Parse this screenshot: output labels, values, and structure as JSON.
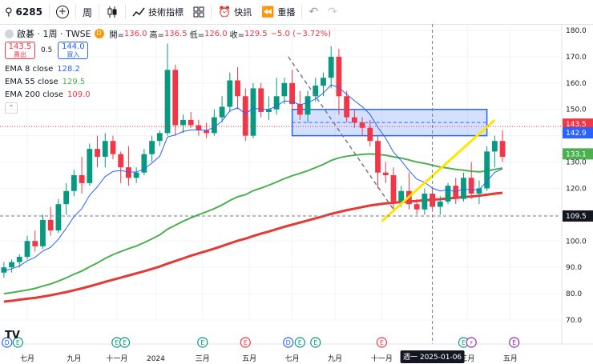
{
  "toolbar": {
    "symbol": "6285",
    "interval": "周",
    "indicators_label": "技術指標",
    "alert_label": "快訊",
    "replay_label": "重播"
  },
  "legend": {
    "name": "啟碁 · 1周 · TWSE",
    "d_badge": "D",
    "open_label": "開=",
    "open": "136.0",
    "high_label": "高=",
    "high": "136.5",
    "low_label": "低=",
    "low": "126.0",
    "close_label": "收=",
    "close": "129.5",
    "change": "−5.0 (−3.72%)",
    "sell_price": "143.5",
    "sell_label": "賣出",
    "spread": "0.5",
    "buy_price": "144.0",
    "buy_label": "買入",
    "ema8_label": "EMA 8 close",
    "ema8_value": "128.2",
    "ema55_label": "EMA 55 close",
    "ema55_value": "129.5",
    "ema200_label": "EMA 200 close",
    "ema200_value": "109.0"
  },
  "crosshair_label": "週一  2025-01-06",
  "price_tags": [
    {
      "value": "143.5",
      "price": 143.5,
      "color": "#f23645"
    },
    {
      "value": "142.9",
      "price": 142.9,
      "color": "#2962ff"
    },
    {
      "value": "133.1",
      "price": 133.1,
      "color": "#4caf50"
    },
    {
      "value": "109.5",
      "price": 109.5,
      "color": "#131722"
    }
  ],
  "event_markers": [
    {
      "label": "D",
      "color": "#2962ff",
      "x": 0.4
    },
    {
      "label": "E",
      "color": "#089981",
      "x": 1.8
    },
    {
      "label": "E",
      "color": "#089981",
      "x": 14.5
    },
    {
      "label": "E",
      "color": "#089981",
      "x": 15.5
    },
    {
      "label": "E",
      "color": "#089981",
      "x": 25.5
    },
    {
      "label": "E",
      "color": "#f23645",
      "x": 31
    },
    {
      "label": "D",
      "color": "#2962ff",
      "x": 36.5
    },
    {
      "label": "E",
      "color": "#089981",
      "x": 38
    },
    {
      "label": "E",
      "color": "#089981",
      "x": 40
    },
    {
      "label": "E",
      "color": "#f23645",
      "x": 48.5
    },
    {
      "label": "E",
      "color": "#089981",
      "x": 59
    },
    {
      "label": "⚡",
      "color": "#9c27b0",
      "x": 60
    },
    {
      "label": "E",
      "color": "#9c27b0",
      "x": 65.5
    }
  ],
  "chart_data": {
    "type": "candlestick",
    "interval": "1W",
    "yaxis": {
      "min": 70,
      "max": 180,
      "ticks": [
        70,
        80,
        90,
        100,
        110,
        120,
        130,
        140,
        150,
        160,
        170,
        180
      ]
    },
    "x_ticks": [
      {
        "label": "七月",
        "x": 3
      },
      {
        "label": "九月",
        "x": 9
      },
      {
        "label": "十一月",
        "x": 14.5
      },
      {
        "label": "2024",
        "x": 19.5
      },
      {
        "label": "三月",
        "x": 25.5
      },
      {
        "label": "五月",
        "x": 31.5
      },
      {
        "label": "七月",
        "x": 37
      },
      {
        "label": "九月",
        "x": 42.5
      },
      {
        "label": "十一月",
        "x": 48.5
      },
      {
        "label": "三月",
        "x": 59.5
      },
      {
        "label": "五月",
        "x": 65
      }
    ],
    "candles": [
      [
        88,
        92,
        86,
        90
      ],
      [
        90,
        93,
        88,
        92
      ],
      [
        92,
        95,
        90,
        94
      ],
      [
        94,
        102,
        93,
        100
      ],
      [
        100,
        104,
        96,
        98
      ],
      [
        98,
        110,
        97,
        108
      ],
      [
        108,
        113,
        102,
        104
      ],
      [
        104,
        116,
        103,
        114
      ],
      [
        114,
        122,
        110,
        119
      ],
      [
        119,
        127,
        117,
        125
      ],
      [
        125,
        132,
        118,
        122
      ],
      [
        122,
        137,
        121,
        135
      ],
      [
        135,
        140,
        128,
        132
      ],
      [
        132,
        141,
        128,
        138
      ],
      [
        138,
        140,
        131,
        133
      ],
      [
        133,
        134,
        122,
        128
      ],
      [
        128,
        136,
        121,
        124
      ],
      [
        124,
        128,
        122,
        126
      ],
      [
        126,
        135,
        125,
        133
      ],
      [
        133,
        140,
        130,
        138
      ],
      [
        138,
        142,
        136,
        141
      ],
      [
        141,
        175,
        140,
        165
      ],
      [
        165,
        167,
        140,
        144
      ],
      [
        144,
        148,
        141,
        146
      ],
      [
        146,
        149,
        143,
        144
      ],
      [
        144,
        146,
        140,
        142
      ],
      [
        142,
        145,
        139,
        141
      ],
      [
        141,
        150,
        140,
        147
      ],
      [
        147,
        155,
        145,
        151
      ],
      [
        151,
        164,
        149,
        161
      ],
      [
        161,
        166,
        150,
        155
      ],
      [
        155,
        158,
        138,
        140
      ],
      [
        140,
        160,
        139,
        158
      ],
      [
        158,
        160,
        147,
        149
      ],
      [
        149,
        155,
        146,
        150
      ],
      [
        150,
        162,
        148,
        155
      ],
      [
        155,
        162,
        152,
        160
      ],
      [
        160,
        165,
        150,
        152
      ],
      [
        152,
        157,
        146,
        148
      ],
      [
        148,
        157,
        145,
        155
      ],
      [
        155,
        162,
        153,
        159
      ],
      [
        159,
        164,
        155,
        162
      ],
      [
        162,
        174,
        158,
        170
      ],
      [
        170,
        173,
        148,
        155
      ],
      [
        155,
        157,
        145,
        147
      ],
      [
        147,
        150,
        143,
        145
      ],
      [
        145,
        147,
        140,
        143
      ],
      [
        143,
        146,
        136,
        138
      ],
      [
        138,
        140,
        120,
        126
      ],
      [
        126,
        130,
        122,
        125
      ],
      [
        125,
        128,
        112,
        115
      ],
      [
        115,
        121,
        113,
        119
      ],
      [
        119,
        126,
        112,
        114
      ],
      [
        114,
        116,
        110,
        112
      ],
      [
        112,
        120,
        110,
        118
      ],
      [
        118,
        120,
        112,
        113
      ],
      [
        113,
        117,
        110,
        115
      ],
      [
        115,
        122,
        114,
        121
      ],
      [
        121,
        124,
        114,
        116
      ],
      [
        116,
        126,
        115,
        124
      ],
      [
        124,
        130,
        116,
        118
      ],
      [
        118,
        123,
        114,
        120
      ],
      [
        120,
        136,
        119,
        134
      ],
      [
        134,
        140,
        128,
        138
      ],
      [
        138,
        142,
        130,
        132
      ]
    ],
    "ema8": [
      88.5,
      89.5,
      90.5,
      92.5,
      93.8,
      96.2,
      97.6,
      100.7,
      104.8,
      109.3,
      112.3,
      117.4,
      120.6,
      124.5,
      126.4,
      126.8,
      126.2,
      126.2,
      127.4,
      129.6,
      132.2,
      139.5,
      140.3,
      141.6,
      142.2,
      142.2,
      142.0,
      143.2,
      145.6,
      149.4,
      150.6,
      148.3,
      150.4,
      150.1,
      150.0,
      151.2,
      153.2,
      153.0,
      151.8,
      152.5,
      154.0,
      156.2,
      159.3,
      158.3,
      155.7,
      153.3,
      151.0,
      148.1,
      143.2,
      139.1,
      133.8,
      130.5,
      126.8,
      123.5,
      122.3,
      120.1,
      119.0,
      119.5,
      118.7,
      119.8,
      119.4,
      119.5,
      122.7,
      126.1,
      127.4
    ],
    "ema55": [
      80,
      80.4,
      80.9,
      81.4,
      82.0,
      82.9,
      83.7,
      84.8,
      86.0,
      87.4,
      88.6,
      90.2,
      91.7,
      93.4,
      94.8,
      96.0,
      97.1,
      98.1,
      99.4,
      100.8,
      102.3,
      104.5,
      106.0,
      107.5,
      108.8,
      110.0,
      111.1,
      112.3,
      113.7,
      115.4,
      116.8,
      117.6,
      119.1,
      120.1,
      121.2,
      122.4,
      123.7,
      124.8,
      125.7,
      126.7,
      127.9,
      129.1,
      130.6,
      131.6,
      132.2,
      132.6,
      132.9,
      133.1,
      132.9,
      132.6,
      132.0,
      131.5,
      130.8,
      130.0,
      129.5,
      128.8,
      128.1,
      127.7,
      127.2,
      126.9,
      126.5,
      126.3,
      126.6,
      127.2,
      127.7
    ],
    "ema200": [
      77,
      77.3,
      77.7,
      78.1,
      78.4,
      78.9,
      79.4,
      80.0,
      80.6,
      81.3,
      82.0,
      82.8,
      83.6,
      84.5,
      85.3,
      86.1,
      86.9,
      87.7,
      88.5,
      89.4,
      90.3,
      91.4,
      92.4,
      93.4,
      94.4,
      95.3,
      96.2,
      97.1,
      98.1,
      99.1,
      100.1,
      100.9,
      101.9,
      102.8,
      103.6,
      104.5,
      105.4,
      106.2,
      107.0,
      107.8,
      108.6,
      109.4,
      110.3,
      111.0,
      111.7,
      112.3,
      112.9,
      113.5,
      113.9,
      114.3,
      114.5,
      114.8,
      115.0,
      115.2,
      115.5,
      115.7,
      115.9,
      116.2,
      116.4,
      116.7,
      116.9,
      117.2,
      117.6,
      118.0,
      118.3
    ]
  },
  "drawings": {
    "rectangle": {
      "x0": 37,
      "x1": 62,
      "y_top": 150,
      "y_bottom": 140
    },
    "dashed_trend": {
      "x0": 36.5,
      "y0": 170,
      "x1": 50,
      "y1": 112
    },
    "support_line": {
      "x0": 48.5,
      "y0": 107.5,
      "x1": 63,
      "y1": 146
    },
    "current_price": 143.5,
    "crosshair": {
      "x": 55,
      "price": 109.5
    }
  }
}
